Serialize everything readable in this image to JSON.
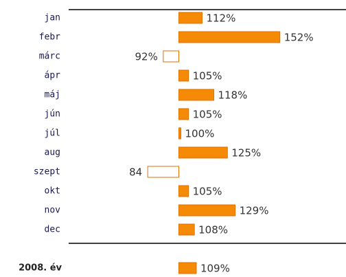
{
  "chart_data": {
    "type": "bar",
    "orientation": "horizontal",
    "categories": [
      "jan",
      "febr",
      "márc",
      "ápr",
      "máj",
      "jún",
      "júl",
      "aug",
      "szept",
      "okt",
      "nov",
      "dec"
    ],
    "values": [
      112,
      152,
      92,
      105,
      118,
      105,
      100,
      125,
      84,
      105,
      129,
      108
    ],
    "value_labels": [
      "112%",
      "152%",
      "92%",
      "105%",
      "118%",
      "105%",
      "100%",
      "125%",
      "84",
      "105%",
      "129%",
      "108%"
    ],
    "color": "#f58a07",
    "baseline": 100,
    "xlim": [
      8,
      186
    ],
    "total": {
      "label": "2008. év",
      "value": 109,
      "value_label": "109%"
    }
  }
}
